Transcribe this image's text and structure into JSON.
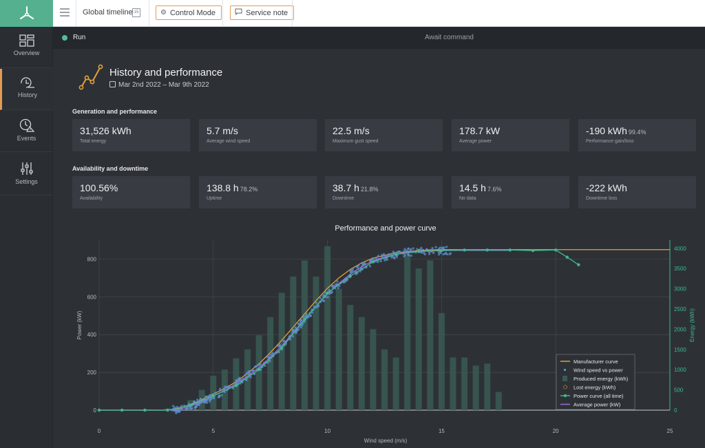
{
  "topbar": {
    "timeline_label": "Global timeline",
    "calendar_day": "15",
    "control_mode_label": "Control Mode",
    "service_note_label": "Service note"
  },
  "sidebar": {
    "items": [
      {
        "label": "Overview"
      },
      {
        "label": "History"
      },
      {
        "label": "Events"
      },
      {
        "label": "Settings"
      }
    ]
  },
  "status": {
    "state_label": "Run",
    "message": "Await command"
  },
  "header": {
    "title": "History and performance",
    "date_range": "Mar 2nd 2022 – Mar 9th 2022"
  },
  "generation": {
    "title": "Generation and performance",
    "cards": [
      {
        "value": "31,526 kWh",
        "pct": "",
        "label": "Total energy"
      },
      {
        "value": "5.7 m/s",
        "pct": "",
        "label": "Average wind speed"
      },
      {
        "value": "22.5 m/s",
        "pct": "",
        "label": "Maximum gust speed"
      },
      {
        "value": "178.7 kW",
        "pct": "",
        "label": "Average power"
      },
      {
        "value": "-190 kWh",
        "pct": "99.4%",
        "label": "Performance gain/loss"
      }
    ]
  },
  "availability": {
    "title": "Availability and downtime",
    "cards": [
      {
        "value": "100.56%",
        "pct": "",
        "label": "Availability"
      },
      {
        "value": "138.8 h",
        "pct": "78.2%",
        "label": "Uptime"
      },
      {
        "value": "38.7 h",
        "pct": "21.8%",
        "label": "Downtime"
      },
      {
        "value": "14.5 h",
        "pct": "7.6%",
        "label": "No data"
      },
      {
        "value": "-222 kWh",
        "pct": "",
        "label": "Downtime loss"
      }
    ]
  },
  "colors": {
    "accent": "#e39b54",
    "brand": "#55b08f",
    "run": "#4fc09c",
    "manufacturer": "#e3a23a",
    "scatter": "#5b8fd0",
    "energy_bar": "#3a5a52",
    "power_curve": "#3fb98f",
    "average": "#9b6fd6"
  },
  "chart_data": {
    "type": "line",
    "title": "Performance and power curve",
    "xlabel": "Wind speed (m/s)",
    "ylabel": "Power (kW)",
    "y2label": "Energy (kWh)",
    "xlim": [
      0,
      25
    ],
    "ylim": [
      0,
      900
    ],
    "y2lim": [
      0,
      4200
    ],
    "x_ticks": [
      0,
      5,
      10,
      15,
      20,
      25
    ],
    "y_ticks": [
      0,
      200,
      400,
      600,
      800
    ],
    "y2_ticks": [
      0,
      500,
      1000,
      1500,
      2000,
      2500,
      3000,
      3500,
      4000
    ],
    "grid": true,
    "legend_position": "bottom-right",
    "legend": [
      "Manufacturer curve",
      "Wind speed vs power",
      "Produced energy (kWh)",
      "Lost energy (kWh)",
      "Power curve (all time)",
      "Average power (kW)"
    ],
    "manufacturer_curve": {
      "x": [
        0,
        3,
        3.5,
        4,
        4.5,
        5,
        5.5,
        6,
        6.5,
        7,
        7.5,
        8,
        8.5,
        9,
        9.5,
        10,
        10.5,
        11,
        11.5,
        12,
        12.5,
        13,
        13.5,
        14,
        14.5,
        15,
        16,
        17,
        18,
        19,
        20,
        21,
        22,
        23,
        24,
        25
      ],
      "y": [
        0,
        0,
        10,
        30,
        55,
        85,
        115,
        150,
        195,
        245,
        305,
        370,
        440,
        510,
        580,
        645,
        700,
        745,
        780,
        805,
        820,
        832,
        840,
        845,
        848,
        850,
        850,
        850,
        850,
        850,
        850,
        850,
        850,
        850,
        850,
        850
      ]
    },
    "produced_energy": {
      "x": [
        1,
        2,
        3,
        3.5,
        4,
        4.5,
        5,
        5.5,
        6,
        6.5,
        7,
        7.5,
        8,
        8.5,
        9,
        9.5,
        10,
        10.5,
        11,
        11.5,
        12,
        12.5,
        13,
        13.5,
        14,
        14.5,
        15,
        15.5,
        16,
        16.5,
        17,
        17.5
      ],
      "y": [
        5,
        10,
        40,
        100,
        250,
        500,
        850,
        1000,
        1280,
        1500,
        1850,
        2300,
        2900,
        3300,
        3700,
        3300,
        4050,
        3000,
        2600,
        2300,
        2000,
        1500,
        1300,
        3800,
        3500,
        3700,
        2400,
        1300,
        1300,
        1100,
        1150,
        450
      ]
    },
    "lost_energy_note": "shown as small dotted markers along the curve",
    "power_curve_all_time": {
      "x": [
        0,
        1,
        2,
        3,
        4,
        5,
        6,
        7,
        8,
        9,
        10,
        11,
        12,
        13,
        14,
        15,
        16,
        17,
        18,
        19,
        20,
        20.5,
        21
      ],
      "y": [
        0,
        0,
        0,
        0,
        25,
        75,
        130,
        215,
        330,
        480,
        620,
        710,
        785,
        825,
        840,
        845,
        848,
        848,
        848,
        845,
        848,
        810,
        770
      ]
    },
    "average_power": {
      "x": [
        0,
        3,
        3.5,
        4,
        4.5,
        5,
        5.5,
        6,
        6.5,
        7,
        7.5,
        8,
        8.5,
        9,
        9.5,
        10,
        10.5,
        11,
        11.5,
        12,
        12.5,
        13,
        13.5,
        14,
        14.5,
        15,
        16,
        17,
        18
      ],
      "y": [
        0,
        0,
        5,
        20,
        45,
        75,
        105,
        140,
        180,
        225,
        280,
        340,
        410,
        480,
        550,
        615,
        670,
        720,
        760,
        790,
        810,
        825,
        835,
        840,
        843,
        845,
        846,
        846,
        846
      ]
    },
    "scatter_range_x": [
      3.2,
      15.5
    ]
  }
}
